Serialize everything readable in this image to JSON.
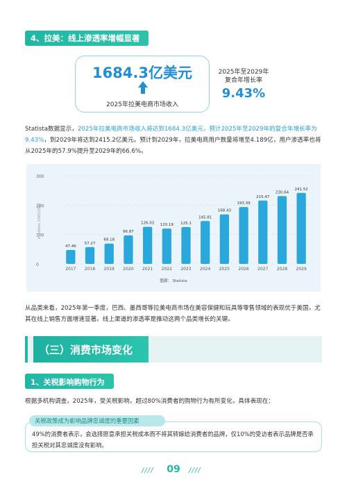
{
  "section4": {
    "heading": "4、拉美：线上渗透率增幅显著"
  },
  "kpi": {
    "revenue_value": "1684.3亿美元",
    "revenue_label": "2025年拉美电商市场收入",
    "cagr_label_line1": "2025年至2029年",
    "cagr_label_line2": "复合年增长率",
    "cagr_value": "9.43%"
  },
  "paragraph1": {
    "part1": "Statista数据显示，",
    "highlight": "2025年拉美电商市场收入将达到1684.3亿美元，预计2025年至2029年的复合年增长率为9.43%",
    "part2": "，到2029年将达到2415.2亿美元。预计到2029年，拉美电商用户数量将增至4.189亿，用户渗透率也将从2025年的57.9%提升至2029年的66.6%。"
  },
  "chart_data": {
    "type": "bar",
    "categories": [
      "2017",
      "2018",
      "2019",
      "2020",
      "2021",
      "2022",
      "2023",
      "2024",
      "2025",
      "2026",
      "2027",
      "2028",
      "2029"
    ],
    "values": [
      47.46,
      57.27,
      69.18,
      96.87,
      126.02,
      120.19,
      125.1,
      145.81,
      168.43,
      193.39,
      215.47,
      230.64,
      241.52
    ],
    "value_labels": [
      "47.46",
      "57.27",
      "69.18",
      "96.87",
      "126.02",
      "120.19",
      "125.1",
      "145.81",
      "168.43",
      "193.39",
      "215.47",
      "230.64",
      "241.52"
    ],
    "yticks": [
      "0",
      "100",
      "200",
      "300"
    ],
    "ylabel": "in billion USD(US$)",
    "ylim": [
      0,
      300
    ],
    "source": "图源： Statista",
    "grid": true,
    "bar_color": "#2aa8dc"
  },
  "paragraph2": {
    "text": "从品类来看，2025年第一季度，巴西、墨西哥等拉美电商市场在美容保健和玩具等零售领域的表现优于美国，尤其在线上销售方面增速显著。线上渠道的渗透率是推动这两个品类增长的关键。"
  },
  "section3": {
    "title": "（三）消费市场变化"
  },
  "section3_1": {
    "heading": "1、关税影响购物行为"
  },
  "paragraph3": {
    "text": "根据多机构调查，2025年，受关税影响，超过80%消费者的购物行为有所变化，具体表现在："
  },
  "callout": {
    "tag": "关税政策成为影响品牌忠诚度的重要因素",
    "text": "49%的消费者表示，会选择愿意承担关税成本而不将其转嫁给消费者的品牌，仅10%的受访者表示品牌是否承担关税对其忠诚度没有影响。"
  },
  "footer": {
    "page_number": "09",
    "left_deco": "////",
    "right_deco": "////"
  }
}
